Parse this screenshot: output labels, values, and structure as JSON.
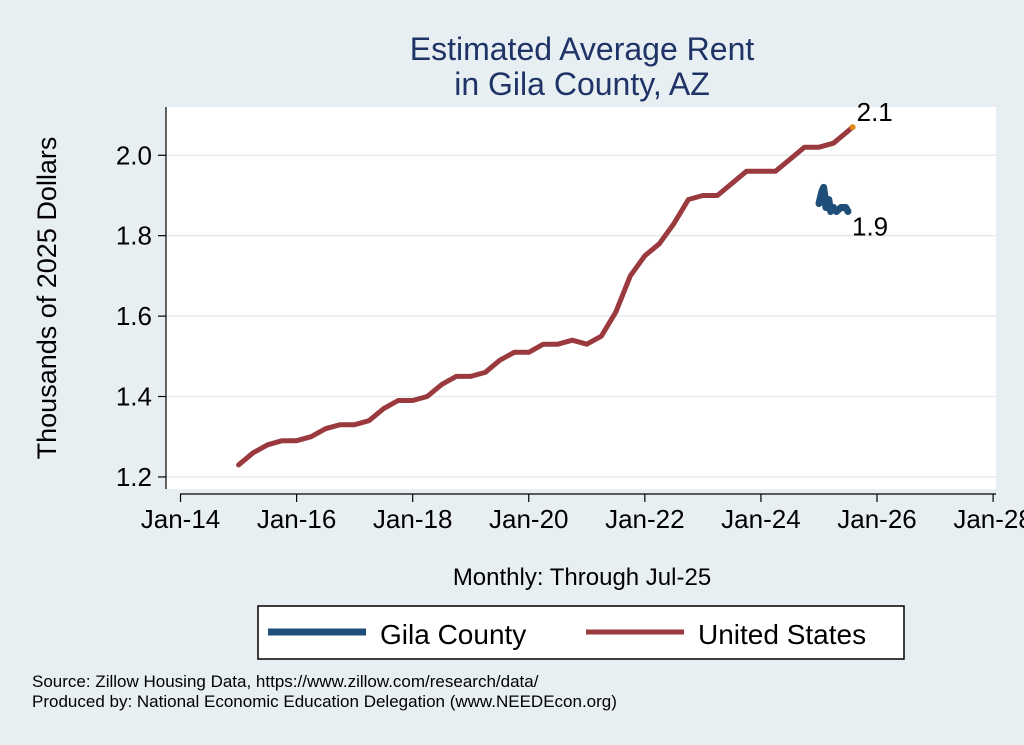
{
  "chart_data": {
    "type": "line",
    "title": [
      "Estimated Average Rent",
      "in Gila County, AZ"
    ],
    "xlabel": "Monthly: Through Jul-25",
    "ylabel": "Thousands of 2025 Dollars",
    "x_ticks": [
      "Jan-14",
      "Jan-16",
      "Jan-18",
      "Jan-20",
      "Jan-22",
      "Jan-24",
      "Jan-26",
      "Jan-28"
    ],
    "x_tick_values": [
      2014.0,
      2016.0,
      2018.0,
      2020.0,
      2022.0,
      2024.0,
      2026.0,
      2028.0
    ],
    "xlim": [
      2013.75,
      2028.05
    ],
    "y_ticks": [
      1.2,
      1.4,
      1.6,
      1.8,
      2.0
    ],
    "y_tick_labels": [
      "1.2",
      "1.4",
      "1.6",
      "1.8",
      "2.0"
    ],
    "ylim": [
      1.17,
      2.12
    ],
    "grid": true,
    "legend_position": "bottom",
    "series": [
      {
        "name": "Gila County",
        "color": "#1f4e79",
        "end_label": "1.9",
        "points": [
          [
            2025.0,
            1.88
          ],
          [
            2025.05,
            1.91
          ],
          [
            2025.08,
            1.92
          ],
          [
            2025.1,
            1.9
          ],
          [
            2025.12,
            1.87
          ],
          [
            2025.17,
            1.89
          ],
          [
            2025.2,
            1.86
          ],
          [
            2025.25,
            1.87
          ],
          [
            2025.3,
            1.86
          ],
          [
            2025.38,
            1.87
          ],
          [
            2025.46,
            1.87
          ],
          [
            2025.5,
            1.86
          ]
        ]
      },
      {
        "name": "United States",
        "color": "#9b3a3e",
        "end_label": "2.1",
        "points": [
          [
            2015.0,
            1.23
          ],
          [
            2015.25,
            1.26
          ],
          [
            2015.5,
            1.28
          ],
          [
            2015.75,
            1.29
          ],
          [
            2016.0,
            1.29
          ],
          [
            2016.25,
            1.3
          ],
          [
            2016.5,
            1.32
          ],
          [
            2016.75,
            1.33
          ],
          [
            2017.0,
            1.33
          ],
          [
            2017.25,
            1.34
          ],
          [
            2017.5,
            1.37
          ],
          [
            2017.75,
            1.39
          ],
          [
            2018.0,
            1.39
          ],
          [
            2018.25,
            1.4
          ],
          [
            2018.5,
            1.43
          ],
          [
            2018.75,
            1.45
          ],
          [
            2019.0,
            1.45
          ],
          [
            2019.25,
            1.46
          ],
          [
            2019.5,
            1.49
          ],
          [
            2019.75,
            1.51
          ],
          [
            2020.0,
            1.51
          ],
          [
            2020.25,
            1.53
          ],
          [
            2020.5,
            1.53
          ],
          [
            2020.75,
            1.54
          ],
          [
            2021.0,
            1.53
          ],
          [
            2021.25,
            1.55
          ],
          [
            2021.5,
            1.61
          ],
          [
            2021.75,
            1.7
          ],
          [
            2022.0,
            1.75
          ],
          [
            2022.25,
            1.78
          ],
          [
            2022.5,
            1.83
          ],
          [
            2022.75,
            1.89
          ],
          [
            2023.0,
            1.9
          ],
          [
            2023.25,
            1.9
          ],
          [
            2023.5,
            1.93
          ],
          [
            2023.75,
            1.96
          ],
          [
            2024.0,
            1.96
          ],
          [
            2024.25,
            1.96
          ],
          [
            2024.5,
            1.99
          ],
          [
            2024.75,
            2.02
          ],
          [
            2025.0,
            2.02
          ],
          [
            2025.25,
            2.03
          ],
          [
            2025.5,
            2.06
          ],
          [
            2025.58,
            2.07
          ]
        ]
      }
    ]
  },
  "source_notes": [
    "Source: Zillow Housing Data, https://www.zillow.com/research/data/",
    "Produced by: National Economic Education Delegation (www.NEEDEcon.org)"
  ],
  "colors": {
    "background": "#e8eff3",
    "plot_background": "#ffffff",
    "grid": "#e3ebef",
    "endpoint_marker": "#e08a1e"
  }
}
